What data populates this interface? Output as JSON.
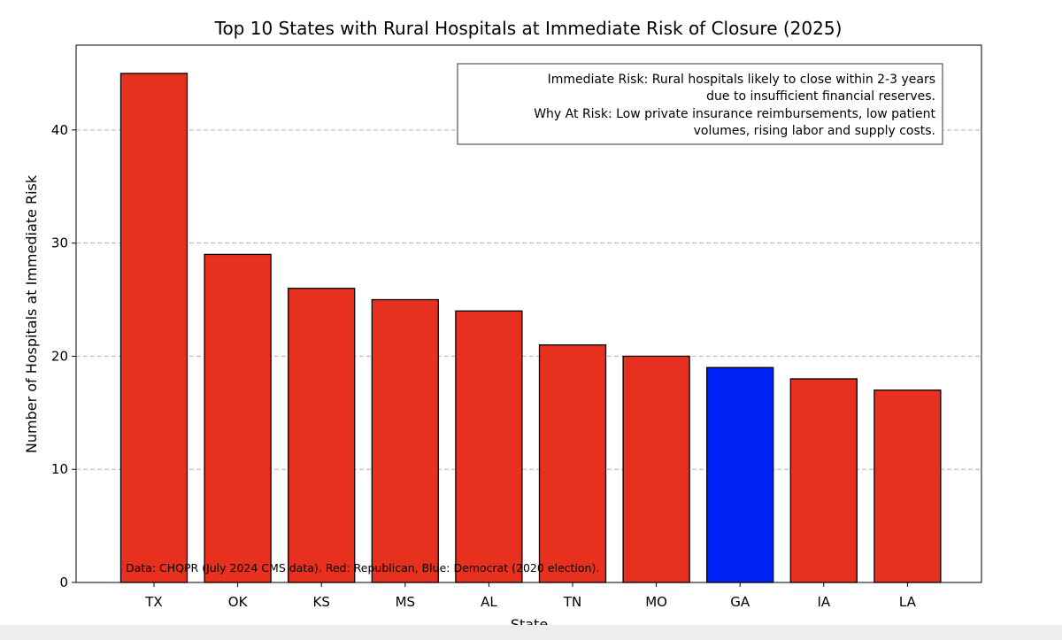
{
  "chart_data": {
    "type": "bar",
    "title": "Top 10 States with Rural Hospitals at Immediate Risk of Closure (2025)",
    "xlabel": "State",
    "ylabel": "Number of Hospitals at Immediate Risk",
    "categories": [
      "TX",
      "OK",
      "KS",
      "MS",
      "AL",
      "TN",
      "MO",
      "GA",
      "IA",
      "LA"
    ],
    "values": [
      45,
      29,
      26,
      25,
      24,
      21,
      20,
      19,
      18,
      17
    ],
    "bar_colors": [
      "#e8301f",
      "#e8301f",
      "#e8301f",
      "#e8301f",
      "#e8301f",
      "#e8301f",
      "#e8301f",
      "#0022f5",
      "#e8301f",
      "#e8301f"
    ],
    "edge_color": "#000000",
    "ylim": [
      0,
      47.5
    ],
    "yticks": [
      0,
      10,
      20,
      30,
      40
    ],
    "grid": "y-dashed",
    "legend_placement": "top-right",
    "annotation_lines": [
      "Immediate Risk: Rural hospitals likely to close within 2-3 years",
      "due to insufficient financial reserves.",
      "Why At Risk: Low private insurance reimbursements, low patient",
      "volumes, rising labor and supply costs."
    ],
    "footnote": "Data: CHQPR (July 2024 CMS data). Red: Republican, Blue: Democrat (2020 election)."
  }
}
